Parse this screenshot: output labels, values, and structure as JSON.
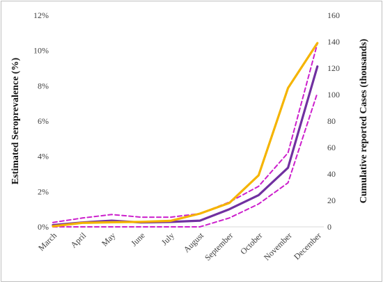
{
  "chart_data": {
    "type": "line",
    "categories": [
      "March",
      "April",
      "May",
      "June",
      "July",
      "August",
      "September",
      "October",
      "November",
      "December"
    ],
    "ylabel": "Estimated Seroprevalence (%)",
    "y2label": "Cumulative reported Cases (thousands)",
    "ylim": [
      0,
      12
    ],
    "y2lim": [
      0,
      160
    ],
    "yticks": [
      "0%",
      "2%",
      "4%",
      "6%",
      "8%",
      "10%",
      "12%"
    ],
    "y2ticks": [
      "0",
      "20",
      "40",
      "60",
      "80",
      "100",
      "120",
      "140",
      "160"
    ],
    "grid": false,
    "legend": "none",
    "series": [
      {
        "axis": "left",
        "style": "solid",
        "color": "#7030a0",
        "values": [
          0.1,
          0.25,
          0.35,
          0.25,
          0.28,
          0.35,
          1.0,
          1.8,
          3.35,
          9.1
        ]
      },
      {
        "axis": "left",
        "style": "dashed",
        "color": "#cc1fcc",
        "values": [
          0.25,
          0.5,
          0.7,
          0.55,
          0.55,
          0.75,
          1.4,
          2.3,
          4.2,
          10.4
        ]
      },
      {
        "axis": "left",
        "style": "dashed",
        "color": "#cc1fcc",
        "values": [
          0.0,
          0.0,
          0.0,
          0.0,
          0.0,
          0.0,
          0.5,
          1.3,
          2.5,
          7.6
        ]
      },
      {
        "axis": "right",
        "style": "solid",
        "color": "#f5b400",
        "values": [
          0.5,
          3,
          3.5,
          3.8,
          4.5,
          10,
          18,
          39,
          105,
          139
        ]
      }
    ]
  }
}
